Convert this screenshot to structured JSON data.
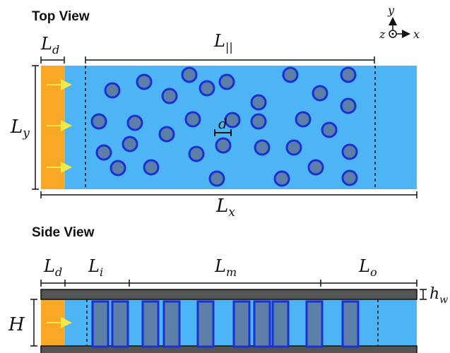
{
  "top_view": {
    "title": "Top View",
    "labels": {
      "Ld": {
        "main": "L",
        "sub": "d"
      },
      "Lpar": {
        "main": "L",
        "sub": "||"
      },
      "Ly": {
        "main": "L",
        "sub": "y"
      },
      "Lx": {
        "main": "L",
        "sub": "x"
      },
      "d": "d"
    },
    "axes": {
      "y": "y",
      "z": "z",
      "x": "x"
    }
  },
  "side_view": {
    "title": "Side View",
    "labels": {
      "Ld": {
        "main": "L",
        "sub": "d"
      },
      "Li": {
        "main": "L",
        "sub": "i"
      },
      "Lm": {
        "main": "L",
        "sub": "m"
      },
      "Lo": {
        "main": "L",
        "sub": "o"
      },
      "H": "H",
      "hw": {
        "main": "h",
        "sub": "w"
      }
    }
  },
  "colors": {
    "fluid": "#4db5f5",
    "driver": "#f9a826",
    "obstacle_fill": "#5b7fa6",
    "obstacle_stroke": "#1a2fd6",
    "wall": "#555555",
    "arrow": "#f5e64a"
  }
}
